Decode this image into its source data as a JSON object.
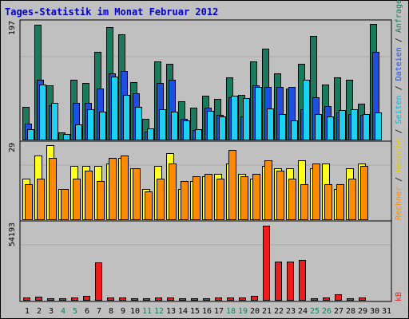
{
  "chart_data": {
    "type": "bar",
    "title": "Tages-Statistik im Monat Februar 2012",
    "days": [
      "1",
      "2",
      "3",
      "4",
      "5",
      "6",
      "7",
      "8",
      "9",
      "10",
      "11",
      "12",
      "13",
      "14",
      "15",
      "16",
      "17",
      "18",
      "19",
      "20",
      "21",
      "22",
      "23",
      "24",
      "25",
      "26",
      "27",
      "28",
      "29",
      "30",
      "31"
    ],
    "weekend_days": [
      "4",
      "5",
      "11",
      "12",
      "18",
      "19",
      "25",
      "26"
    ],
    "panels": {
      "top": {
        "max_label": "197",
        "ymax": 197,
        "series": [
          {
            "name": "Anfragen",
            "color": "#1a7a5e",
            "values": [
              56,
              195,
              93,
              14,
              103,
              97,
              150,
              191,
              180,
              98,
              36,
              133,
              129,
              66,
              55,
              76,
              70,
              106,
              77,
              133,
              155,
              113,
              88,
              129,
              177,
              95,
              106,
              102,
              62,
              197,
              0
            ]
          },
          {
            "name": "Dateien",
            "color": "#1f4fe0",
            "values": [
              28,
              102,
              60,
              0,
              63,
              64,
              88,
              114,
              117,
              80,
              15,
              97,
              102,
              37,
              18,
              55,
              43,
              73,
              40,
              93,
              91,
              90,
              90,
              53,
              73,
              58,
              47,
              44,
              43,
              150,
              0
            ]
          },
          {
            "name": "Seiten",
            "color": "#1ed0f2",
            "values": [
              19,
              94,
              63,
              11,
              27,
              53,
              49,
              108,
              77,
              57,
              20,
              53,
              49,
              34,
              19,
              50,
              40,
              75,
              71,
              91,
              54,
              45,
              34,
              103,
              45,
              41,
              51,
              52,
              44,
              47,
              0
            ]
          }
        ]
      },
      "middle": {
        "max_label": "29",
        "ymax": 29,
        "series": [
          {
            "name": "Besuche",
            "color": "#ffff20",
            "values": [
              16,
              25,
              29,
              12,
              21,
              21,
              21,
              22,
              24,
              20,
              12,
              21,
              26,
              12,
              15,
              17,
              18,
              22,
              18,
              16,
              21,
              20,
              20,
              23,
              20,
              22,
              12,
              20,
              22,
              0,
              0
            ]
          },
          {
            "name": "Rechner",
            "color": "#ff8a00",
            "values": [
              14,
              16,
              24,
              12,
              16,
              19,
              15,
              24,
              25,
              20,
              11,
              16,
              22,
              15,
              17,
              18,
              16,
              27,
              17,
              18,
              23,
              19,
              16,
              14,
              22,
              14,
              14,
              16,
              21,
              0,
              0
            ]
          }
        ]
      },
      "bottom": {
        "max_label": "54193",
        "ymax": 54193,
        "series": [
          {
            "name": "kB",
            "color": "#ee1c1c",
            "values": [
              2171,
              2712,
              1627,
              1627,
              2442,
              3525,
              27620,
              2171,
              2171,
              1627,
              1627,
              2171,
              2171,
              1627,
              1627,
              1627,
              2442,
              2442,
              2442,
              3525,
              54193,
              28164,
              28164,
              29248,
              1627,
              2442,
              4338,
              1627,
              2171,
              0,
              0
            ]
          }
        ]
      }
    },
    "side_labels": {
      "kb": "kB",
      "rechner": "Rechner",
      "sep1": " / ",
      "besuche": "Besuche",
      "sep2": " / ",
      "seiten": "Seiten",
      "sep3": " / ",
      "dateien": "Dateien",
      "sep4": " / ",
      "anfragen": "Anfragen"
    },
    "colors": {
      "background": "#c0c0c0",
      "frame": "#000000",
      "title": "#0000cc",
      "weekday_label": "#000000",
      "weekend_label": "#16805a",
      "gridline": "#a8a8a8"
    }
  }
}
